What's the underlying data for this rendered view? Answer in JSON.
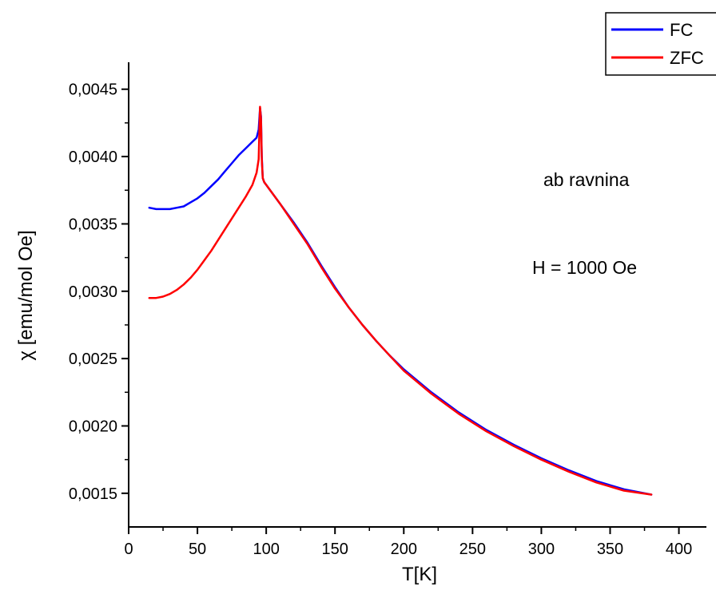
{
  "chart_data": {
    "type": "line",
    "xlabel": "T[K]",
    "ylabel": "χ [emu/mol Oe]",
    "xlim": [
      0,
      420
    ],
    "ylim": [
      0.00125,
      0.0047
    ],
    "x_ticks": [
      0,
      50,
      100,
      150,
      200,
      250,
      300,
      350,
      400
    ],
    "x_tick_labels": [
      "0",
      "50",
      "100",
      "150",
      "200",
      "250",
      "300",
      "350",
      "400"
    ],
    "y_ticks": [
      0.0015,
      0.002,
      0.0025,
      0.003,
      0.0035,
      0.004,
      0.0045
    ],
    "y_tick_labels": [
      "0,0015",
      "0,0020",
      "0,0025",
      "0,0030",
      "0,0035",
      "0,0040",
      "0,0045"
    ],
    "legend_position": "top-right",
    "annotations": [
      "ab ravnina",
      "H = 1000 Oe"
    ],
    "series": [
      {
        "name": "FC",
        "color": "#0000ff",
        "x": [
          15,
          20,
          25,
          30,
          35,
          40,
          45,
          50,
          55,
          60,
          65,
          70,
          75,
          80,
          85,
          90,
          93,
          94.5,
          95.5,
          96.2,
          96.8,
          97.5,
          98.5,
          100,
          110,
          120,
          130,
          140,
          150,
          160,
          170,
          180,
          190,
          200,
          220,
          240,
          260,
          280,
          300,
          320,
          340,
          360,
          380
        ],
        "y": [
          0.00362,
          0.00361,
          0.00361,
          0.00361,
          0.00362,
          0.00363,
          0.00366,
          0.00369,
          0.00373,
          0.00378,
          0.00383,
          0.00389,
          0.00395,
          0.00401,
          0.00406,
          0.00411,
          0.00414,
          0.0042,
          0.00436,
          0.0043,
          0.004,
          0.00384,
          0.00381,
          0.00379,
          0.00365,
          0.00351,
          0.00336,
          0.00319,
          0.00303,
          0.00288,
          0.00275,
          0.00263,
          0.00252,
          0.00242,
          0.00225,
          0.0021,
          0.00197,
          0.00186,
          0.00176,
          0.00167,
          0.00159,
          0.00153,
          0.00149
        ]
      },
      {
        "name": "ZFC",
        "color": "#ff0000",
        "x": [
          15,
          20,
          25,
          30,
          35,
          40,
          45,
          50,
          55,
          60,
          65,
          70,
          75,
          80,
          85,
          90,
          93,
          94.5,
          95.5,
          96.2,
          96.8,
          97.5,
          98.5,
          100,
          110,
          120,
          130,
          140,
          150,
          160,
          170,
          180,
          190,
          200,
          220,
          240,
          260,
          280,
          300,
          320,
          340,
          360,
          380
        ],
        "y": [
          0.00295,
          0.00295,
          0.00296,
          0.00298,
          0.00301,
          0.00305,
          0.0031,
          0.00316,
          0.00323,
          0.0033,
          0.00338,
          0.00346,
          0.00354,
          0.00362,
          0.0037,
          0.00379,
          0.00388,
          0.00398,
          0.00437,
          0.00428,
          0.00398,
          0.00384,
          0.00381,
          0.00379,
          0.00365,
          0.0035,
          0.00335,
          0.00318,
          0.00302,
          0.00288,
          0.00275,
          0.00263,
          0.00252,
          0.00241,
          0.00224,
          0.00209,
          0.00196,
          0.00185,
          0.00175,
          0.00166,
          0.00158,
          0.00152,
          0.00149
        ]
      }
    ]
  }
}
